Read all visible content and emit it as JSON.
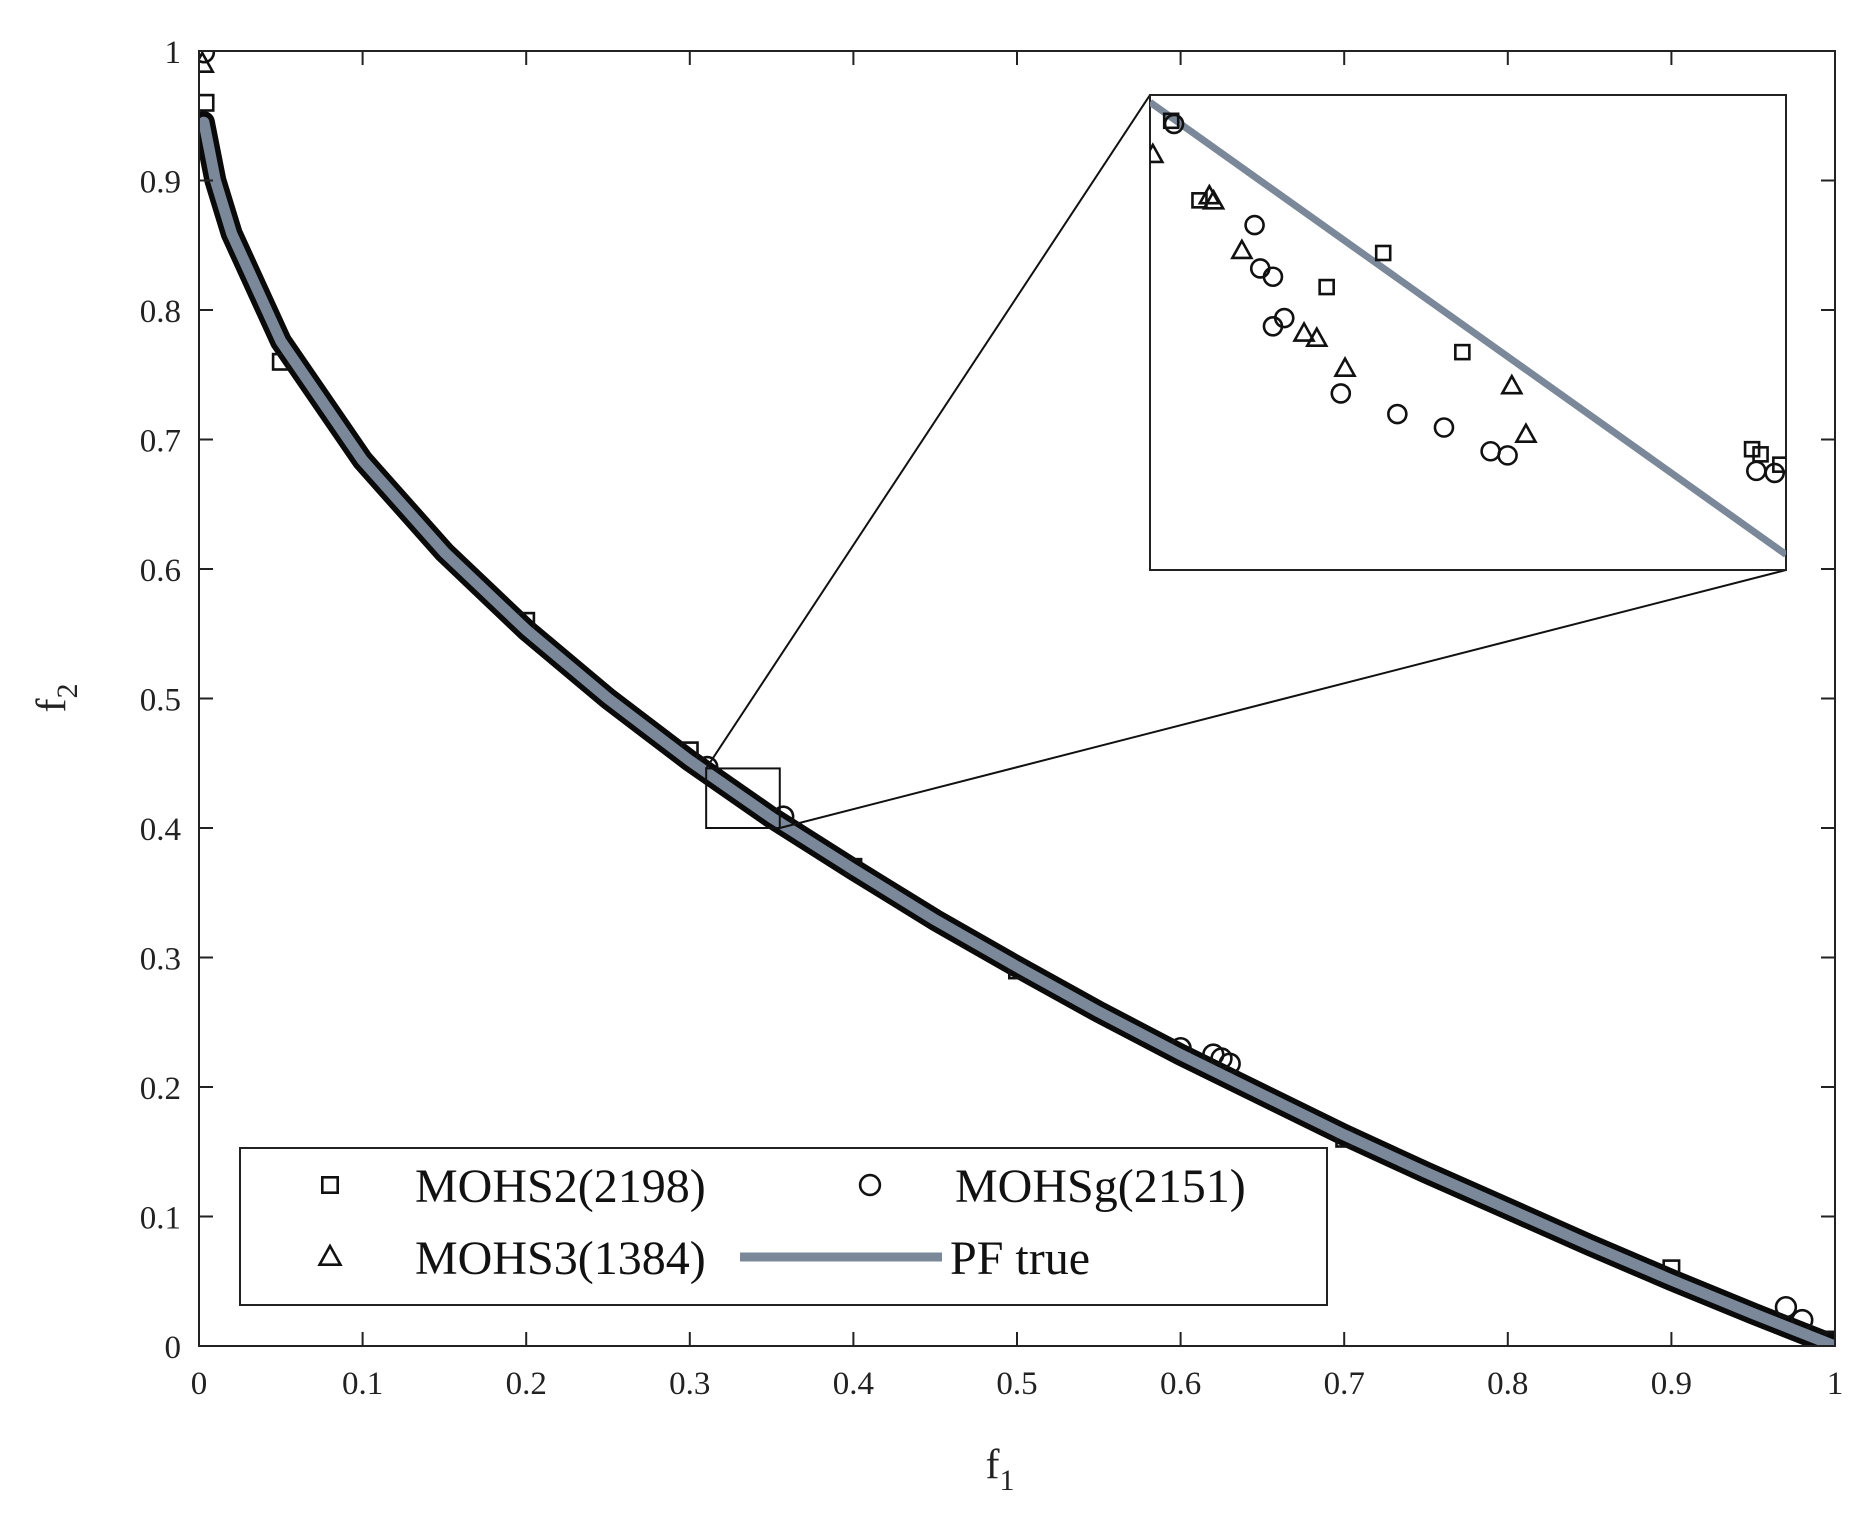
{
  "chart_data": {
    "type": "scatter",
    "xlabel": "f",
    "xlabel_sub": "1",
    "ylabel": "f",
    "ylabel_sub": "2",
    "xlim": [
      0,
      1
    ],
    "ylim": [
      0,
      1
    ],
    "xticks": [
      "0",
      "0.1",
      "0.2",
      "0.3",
      "0.4",
      "0.5",
      "0.6",
      "0.7",
      "0.8",
      "0.9",
      "1"
    ],
    "yticks": [
      "0",
      "0.1",
      "0.2",
      "0.3",
      "0.4",
      "0.5",
      "0.6",
      "0.7",
      "0.8",
      "0.9",
      "1"
    ],
    "grid": false,
    "legend_position": "bottom-left",
    "series": [
      {
        "name": "MOHS2(2198)",
        "marker": "square",
        "color": "#000000",
        "x": [
          0.004,
          0.05,
          0.2,
          0.3,
          0.3115,
          0.3135,
          0.3265,
          0.3225,
          0.3321,
          0.3526,
          0.3532,
          0.3546,
          0.4,
          0.5,
          0.7,
          0.9,
          0.995
        ],
        "y": [
          0.96,
          0.76,
          0.56,
          0.46,
          0.4435,
          0.4358,
          0.4307,
          0.4274,
          0.4211,
          0.4117,
          0.4112,
          0.4102,
          0.37,
          0.29,
          0.16,
          0.06,
          0.005
        ]
      },
      {
        "name": "MOHSg(2151)",
        "marker": "circle",
        "color": "#000000",
        "x": [
          0.003,
          0.3107,
          0.3117,
          0.3174,
          0.3178,
          0.3187,
          0.3187,
          0.3195,
          0.3235,
          0.3275,
          0.3308,
          0.3341,
          0.3353,
          0.3529,
          0.3571,
          0.3542,
          0.6,
          0.62,
          0.625,
          0.63,
          0.97,
          0.98,
          0.998
        ],
        "y": [
          0.999,
          0.4471,
          0.4432,
          0.4334,
          0.4292,
          0.4284,
          0.4236,
          0.4244,
          0.4171,
          0.4151,
          0.4138,
          0.4115,
          0.4111,
          0.4096,
          0.4088,
          0.4094,
          0.23,
          0.225,
          0.222,
          0.218,
          0.03,
          0.02,
          0.003
        ]
      },
      {
        "name": "MOHS3(1384)",
        "marker": "triangle",
        "color": "#000000",
        "x": [
          0.002,
          0.3102,
          0.3142,
          0.3145,
          0.3165,
          0.3209,
          0.3218,
          0.3238,
          0.3356,
          0.3366
        ],
        "y": [
          0.99,
          0.4402,
          0.4362,
          0.4357,
          0.4309,
          0.4229,
          0.4224,
          0.4195,
          0.4178,
          0.4131
        ]
      },
      {
        "name": "PF true",
        "marker": "line",
        "color": "#7a8899",
        "x": [
          0.003,
          0.01,
          0.02,
          0.05,
          0.1,
          0.15,
          0.2,
          0.25,
          0.3,
          0.35,
          0.4,
          0.45,
          0.5,
          0.55,
          0.6,
          0.65,
          0.7,
          0.75,
          0.8,
          0.85,
          0.9,
          0.95,
          1.0
        ],
        "y": [
          0.945,
          0.9,
          0.859,
          0.776,
          0.684,
          0.613,
          0.553,
          0.5,
          0.452,
          0.408,
          0.368,
          0.329,
          0.293,
          0.258,
          0.225,
          0.194,
          0.163,
          0.134,
          0.106,
          0.078,
          0.051,
          0.025,
          0.0
        ]
      }
    ],
    "zoom": {
      "xlim": [
        0.31,
        0.355
      ],
      "ylim": [
        0.4,
        0.446
      ]
    }
  }
}
